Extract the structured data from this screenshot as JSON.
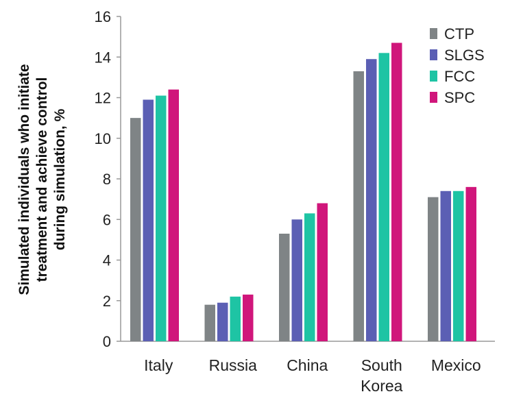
{
  "chart_data": {
    "type": "bar",
    "categories": [
      [
        "Italy"
      ],
      [
        "Russia"
      ],
      [
        "China"
      ],
      [
        "South",
        "Korea"
      ],
      [
        "Mexico"
      ]
    ],
    "series": [
      {
        "name": "CTP",
        "color": "#7f8486",
        "values": [
          11.0,
          1.8,
          5.3,
          13.3,
          7.1
        ]
      },
      {
        "name": "SLGS",
        "color": "#5b5fb4",
        "values": [
          11.9,
          1.9,
          6.0,
          13.9,
          7.4
        ]
      },
      {
        "name": "FCC",
        "color": "#1ec4a4",
        "values": [
          12.1,
          2.2,
          6.3,
          14.2,
          7.4
        ]
      },
      {
        "name": "SPC",
        "color": "#d0167b",
        "values": [
          12.4,
          2.3,
          6.8,
          14.7,
          7.6
        ]
      }
    ],
    "ylabel": [
      "Simulated individuals who initiate",
      "treatment and achieve control",
      "during simulation, %"
    ],
    "ylim": [
      0,
      16
    ],
    "yticks": [
      0,
      2,
      4,
      6,
      8,
      10,
      12,
      14,
      16
    ],
    "grid": false,
    "legend_position": "top-right"
  }
}
